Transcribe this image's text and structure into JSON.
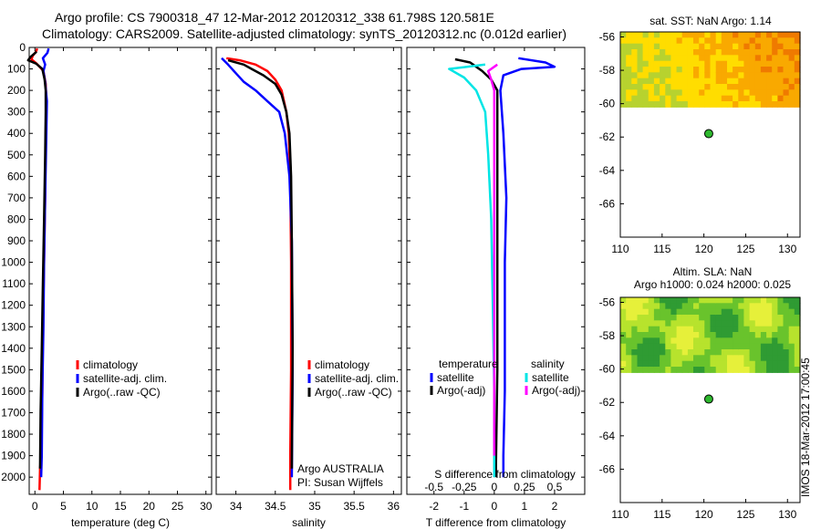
{
  "header": {
    "line1": "Argo profile: CS 7900318_47 12-Mar-2012 20120312_338 61.798S 120.581E",
    "line2": "Climatology: CARS2009. Satellite-adjusted climatology: synTS_20120312.nc (0.012d earlier)"
  },
  "side_label": "IMOS 18-Mar-2012 17:00:45",
  "colors": {
    "red": "#ff0000",
    "blue": "#0000ff",
    "black": "#000000",
    "cyan": "#00e5e5",
    "magenta": "#ff00ff",
    "dot": "#2eb82e"
  },
  "chart_data": [
    {
      "id": "temperature",
      "type": "line",
      "xlabel": "temperature (deg C)",
      "ylabel": "",
      "xlim": [
        -1,
        31
      ],
      "ylim": [
        2080,
        0
      ],
      "xticks": [
        0,
        5,
        10,
        15,
        20,
        25,
        30
      ],
      "yticks": [
        0,
        100,
        200,
        300,
        400,
        500,
        600,
        700,
        800,
        900,
        1000,
        1100,
        1200,
        1300,
        1400,
        1500,
        1600,
        1700,
        1800,
        1900,
        2000
      ],
      "legend": [
        "climatology",
        "satellite-adj. clim.",
        "Argo(..raw -QC)"
      ],
      "series": [
        {
          "name": "climatology",
          "color": "red",
          "points": [
            [
              0.4,
              5
            ],
            [
              0.2,
              20
            ],
            [
              -0.4,
              40
            ],
            [
              -0.6,
              55
            ],
            [
              0.3,
              75
            ],
            [
              1.5,
              110
            ],
            [
              1.9,
              170
            ],
            [
              2.0,
              250
            ],
            [
              1.9,
              400
            ],
            [
              1.8,
              700
            ],
            [
              1.6,
              1000
            ],
            [
              1.4,
              1300
            ],
            [
              1.3,
              1600
            ],
            [
              1.1,
              1900
            ],
            [
              0.9,
              1960
            ],
            [
              0.8,
              2060
            ]
          ]
        },
        {
          "name": "satellite-adj. clim.",
          "color": "blue",
          "points": [
            [
              2.4,
              5
            ],
            [
              2.2,
              25
            ],
            [
              1.4,
              50
            ],
            [
              1.8,
              80
            ],
            [
              1.5,
              110
            ],
            [
              1.8,
              160
            ],
            [
              2.1,
              250
            ],
            [
              2.0,
              400
            ],
            [
              1.8,
              700
            ],
            [
              1.6,
              1000
            ],
            [
              1.5,
              1300
            ],
            [
              1.3,
              1600
            ],
            [
              1.2,
              1900
            ],
            [
              1.1,
              2000
            ]
          ]
        },
        {
          "name": "Argo(..raw -QC)",
          "color": "black",
          "points": [
            [
              0.3,
              20
            ],
            [
              -0.8,
              45
            ],
            [
              -1.2,
              60
            ],
            [
              0.2,
              75
            ],
            [
              1.3,
              100
            ],
            [
              1.7,
              150
            ],
            [
              1.9,
              200
            ],
            [
              1.9,
              300
            ],
            [
              1.8,
              500
            ],
            [
              1.6,
              800
            ],
            [
              1.4,
              1100
            ],
            [
              1.2,
              1400
            ],
            [
              1.0,
              1700
            ],
            [
              0.9,
              1960
            ]
          ]
        }
      ]
    },
    {
      "id": "salinity",
      "type": "line",
      "xlabel": "salinity",
      "ylabel": "",
      "xlim": [
        33.75,
        36.1
      ],
      "ylim": [
        2080,
        0
      ],
      "xticks": [
        34,
        34.5,
        35,
        35.5,
        36
      ],
      "legend": [
        "climatology",
        "satellite-adj. clim.",
        "Argo(..raw -QC)"
      ],
      "annotation": [
        "Argo AUSTRALIA",
        "PI: Susan Wijffels"
      ],
      "series": [
        {
          "name": "climatology",
          "color": "red",
          "points": [
            [
              33.88,
              50
            ],
            [
              34.05,
              60
            ],
            [
              34.25,
              80
            ],
            [
              34.4,
              110
            ],
            [
              34.5,
              150
            ],
            [
              34.58,
              200
            ],
            [
              34.64,
              300
            ],
            [
              34.67,
              400
            ],
            [
              34.69,
              600
            ],
            [
              34.7,
              1000
            ],
            [
              34.7,
              1500
            ],
            [
              34.69,
              1900
            ],
            [
              34.69,
              2060
            ]
          ]
        },
        {
          "name": "satellite-adj. clim.",
          "color": "blue",
          "points": [
            [
              33.82,
              50
            ],
            [
              33.9,
              80
            ],
            [
              34.0,
              120
            ],
            [
              34.1,
              160
            ],
            [
              34.25,
              200
            ],
            [
              34.4,
              250
            ],
            [
              34.55,
              300
            ],
            [
              34.62,
              400
            ],
            [
              34.68,
              600
            ],
            [
              34.71,
              900
            ],
            [
              34.72,
              1500
            ],
            [
              34.71,
              2000
            ]
          ]
        },
        {
          "name": "Argo(..raw -QC)",
          "color": "black",
          "points": [
            [
              33.9,
              60
            ],
            [
              34.1,
              80
            ],
            [
              34.2,
              100
            ],
            [
              34.35,
              130
            ],
            [
              34.5,
              170
            ],
            [
              34.58,
              220
            ],
            [
              34.64,
              300
            ],
            [
              34.68,
              400
            ],
            [
              34.7,
              600
            ],
            [
              34.71,
              900
            ],
            [
              34.72,
              1400
            ],
            [
              34.71,
              1960
            ]
          ]
        }
      ]
    },
    {
      "id": "differences",
      "type": "line",
      "xlabel": "T difference from climatology",
      "title2": "S difference from climatology",
      "xlim": [
        -2.9,
        3.0
      ],
      "ylim": [
        2080,
        0
      ],
      "xticks": [
        -2,
        -1,
        0,
        1,
        2
      ],
      "xticks2": [
        -0.5,
        -0.25,
        0,
        0.25,
        0.5
      ],
      "legend_headers": [
        "temperature",
        "salinity"
      ],
      "legend": [
        "satellite",
        "Argo(-adj)",
        "satellite",
        "Argo(-adj)"
      ],
      "series": [
        {
          "name": "temperature satellite",
          "color": "blue",
          "points": [
            [
              0.8,
              50
            ],
            [
              1.7,
              70
            ],
            [
              2.0,
              90
            ],
            [
              0.9,
              100
            ],
            [
              0.3,
              130
            ],
            [
              0.2,
              200
            ],
            [
              0.3,
              400
            ],
            [
              0.4,
              700
            ],
            [
              0.35,
              1000
            ],
            [
              0.35,
              1300
            ],
            [
              0.35,
              1600
            ],
            [
              0.3,
              1900
            ],
            [
              0.3,
              2000
            ]
          ]
        },
        {
          "name": "temperature Argo(-adj)",
          "color": "black",
          "points": [
            [
              -1.3,
              55
            ],
            [
              -0.8,
              70
            ],
            [
              -0.6,
              90
            ],
            [
              -0.4,
              110
            ],
            [
              -0.1,
              150
            ],
            [
              0.1,
              200
            ],
            [
              0.1,
              300
            ],
            [
              0.1,
              600
            ],
            [
              0.1,
              1000
            ],
            [
              0.1,
              1500
            ],
            [
              0.05,
              2000
            ]
          ]
        },
        {
          "name": "salinity satellite",
          "color": "cyan",
          "points": [
            [
              -0.3,
              80
            ],
            [
              -1.5,
              100
            ],
            [
              -1.0,
              140
            ],
            [
              -0.6,
              200
            ],
            [
              -0.3,
              300
            ],
            [
              -0.2,
              500
            ],
            [
              -0.1,
              800
            ],
            [
              -0.05,
              1200
            ],
            [
              0.0,
              1600
            ],
            [
              0.0,
              2000
            ]
          ]
        },
        {
          "name": "salinity Argo(-adj)",
          "color": "magenta",
          "points": [
            [
              0.1,
              80
            ],
            [
              -0.2,
              110
            ],
            [
              -0.1,
              150
            ],
            [
              0.0,
              200
            ],
            [
              0.0,
              400
            ],
            [
              0.0,
              800
            ],
            [
              0.0,
              1200
            ],
            [
              0.0,
              1600
            ],
            [
              0.0,
              1900
            ]
          ]
        }
      ]
    },
    {
      "id": "sst-map",
      "type": "heatmap",
      "title": "sat. SST: NaN Argo: 1.14",
      "xlim": [
        110,
        131.5
      ],
      "ylim": [
        -68,
        -55.7
      ],
      "xticks": [
        110,
        115,
        120,
        125,
        130
      ],
      "yticks": [
        -56,
        -58,
        -60,
        -62,
        -64,
        -66
      ],
      "data_lat": [
        -56,
        -60.2
      ],
      "argo_position": {
        "lon": 120.581,
        "lat": -61.798
      },
      "palette": [
        "#b7d22f",
        "#ffdd00",
        "#f9a900",
        "#ef7a00"
      ]
    },
    {
      "id": "sla-map",
      "type": "heatmap",
      "title": "Altim. SLA: NaN",
      "title2": "Argo h1000: 0.024 h2000: 0.025",
      "xlim": [
        110,
        131.5
      ],
      "ylim": [
        -68,
        -55.7
      ],
      "xticks": [
        110,
        115,
        120,
        125,
        130
      ],
      "yticks": [
        -56,
        -58,
        -60,
        -62,
        -64,
        -66
      ],
      "data_lat": [
        -56,
        -60.2
      ],
      "argo_position": {
        "lon": 120.581,
        "lat": -61.798
      },
      "palette": [
        "#2f9b33",
        "#69c32c",
        "#b7e32d",
        "#e6f03a"
      ]
    }
  ]
}
